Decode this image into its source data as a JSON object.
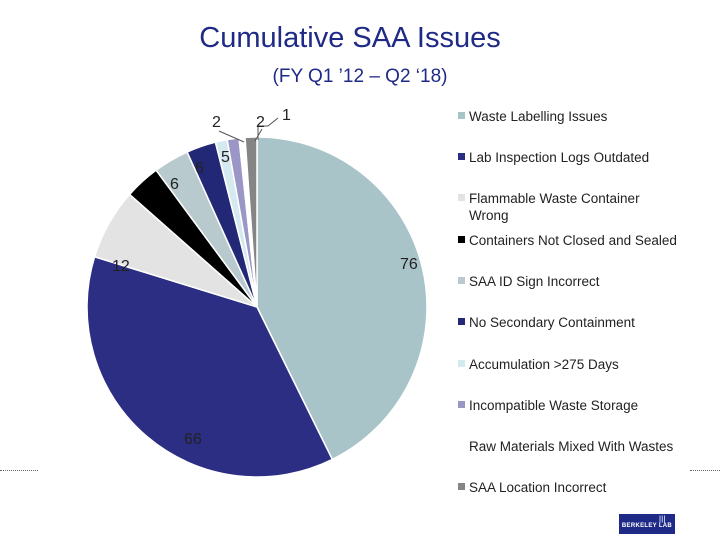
{
  "title": "Cumulative SAA Issues",
  "subtitle": "(FY Q1 ’12 – Q2 ‘18)",
  "logo": {
    "text": "BERKELEY LAB",
    "mark": "|||"
  },
  "chart_data": {
    "type": "pie",
    "title": "Cumulative SAA Issues",
    "subtitle": "(FY Q1 ’12 – Q2 ‘18)",
    "legend_position": "right",
    "slices": [
      {
        "label": "Waste Labelling Issues",
        "value": 76,
        "color": "#a8c4c9"
      },
      {
        "label": "Lab Inspection Logs Outdated",
        "value": 66,
        "color": "#2b2e82"
      },
      {
        "label": "Flammable Waste Container Wrong",
        "value": 12,
        "color": "#e3e3e3"
      },
      {
        "label": "Containers Not Closed and Sealed",
        "value": 6,
        "color": "#000000"
      },
      {
        "label": "SAA ID Sign Incorrect",
        "value": 6,
        "color": "#b8cacd"
      },
      {
        "label": "No Secondary Containment",
        "value": 5,
        "color": "#232876"
      },
      {
        "label": "Accumulation >275 Days",
        "value": 2,
        "color": "#d4eaf0"
      },
      {
        "label": "Incompatible Waste Storage",
        "value": 2,
        "color": "#9a96c6"
      },
      {
        "label": "Raw Materials Mixed With Wastes",
        "value": 1,
        "color": "#ffffff"
      },
      {
        "label": "SAA Location Incorrect",
        "value": 2,
        "color": "#858585"
      }
    ]
  }
}
